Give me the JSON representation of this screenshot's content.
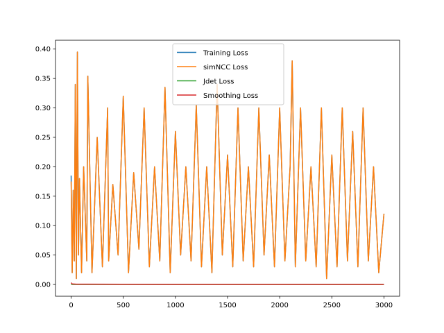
{
  "chart_data": {
    "type": "line",
    "title": "",
    "xlabel": "",
    "ylabel": "",
    "xlim": [
      -150,
      3150
    ],
    "ylim": [
      -0.02,
      0.415
    ],
    "x_ticks": [
      0,
      500,
      1000,
      1500,
      2000,
      2500,
      3000
    ],
    "x_tick_labels": [
      "0",
      "500",
      "1000",
      "1500",
      "2000",
      "2500",
      "3000"
    ],
    "y_ticks": [
      0.0,
      0.05,
      0.1,
      0.15,
      0.2,
      0.25,
      0.3,
      0.35,
      0.4
    ],
    "y_tick_labels": [
      "0.00",
      "0.05",
      "0.10",
      "0.15",
      "0.20",
      "0.25",
      "0.30",
      "0.35",
      "0.40"
    ],
    "grid": false,
    "legend_position": "upper-center",
    "series": [
      {
        "name": "Training Loss",
        "color": "#1f77b4",
        "x": [
          0,
          10,
          20,
          30,
          40,
          50,
          60,
          70,
          80,
          100,
          120,
          150,
          160,
          200,
          250,
          300,
          350,
          360,
          400,
          450,
          500,
          550,
          600,
          650,
          700,
          750,
          800,
          850,
          900,
          950,
          1000,
          1050,
          1100,
          1150,
          1200,
          1250,
          1300,
          1350,
          1400,
          1450,
          1500,
          1550,
          1600,
          1650,
          1700,
          1750,
          1800,
          1850,
          1900,
          1950,
          2000,
          2050,
          2100,
          2120,
          2150,
          2200,
          2250,
          2300,
          2350,
          2400,
          2450,
          2500,
          2550,
          2600,
          2650,
          2700,
          2750,
          2800,
          2850,
          2900,
          2950,
          3000
        ],
        "y": [
          0.185,
          0.02,
          0.16,
          0.04,
          0.34,
          0.01,
          0.395,
          0.05,
          0.18,
          0.02,
          0.2,
          0.04,
          0.354,
          0.02,
          0.25,
          0.03,
          0.3,
          0.04,
          0.17,
          0.05,
          0.32,
          0.02,
          0.19,
          0.06,
          0.3,
          0.03,
          0.2,
          0.04,
          0.335,
          0.02,
          0.26,
          0.05,
          0.2,
          0.04,
          0.305,
          0.03,
          0.2,
          0.02,
          0.34,
          0.05,
          0.22,
          0.03,
          0.3,
          0.04,
          0.2,
          0.03,
          0.3,
          0.05,
          0.22,
          0.03,
          0.3,
          0.04,
          0.2,
          0.38,
          0.03,
          0.3,
          0.04,
          0.2,
          0.03,
          0.3,
          0.01,
          0.22,
          0.03,
          0.3,
          0.04,
          0.26,
          0.03,
          0.3,
          0.04,
          0.2,
          0.02,
          0.12
        ]
      },
      {
        "name": "simNCC Loss",
        "color": "#ff7f0e",
        "x": [
          0,
          10,
          20,
          30,
          40,
          50,
          60,
          70,
          80,
          100,
          120,
          150,
          160,
          200,
          250,
          300,
          350,
          360,
          400,
          450,
          500,
          550,
          600,
          650,
          700,
          750,
          800,
          850,
          900,
          950,
          1000,
          1050,
          1100,
          1150,
          1200,
          1250,
          1300,
          1350,
          1400,
          1450,
          1500,
          1550,
          1600,
          1650,
          1700,
          1750,
          1800,
          1850,
          1900,
          1950,
          2000,
          2050,
          2100,
          2120,
          2150,
          2200,
          2250,
          2300,
          2350,
          2400,
          2450,
          2500,
          2550,
          2600,
          2650,
          2700,
          2750,
          2800,
          2850,
          2900,
          2950,
          3000
        ],
        "y": [
          0.175,
          0.02,
          0.16,
          0.04,
          0.34,
          0.01,
          0.395,
          0.05,
          0.18,
          0.02,
          0.2,
          0.04,
          0.354,
          0.02,
          0.25,
          0.03,
          0.3,
          0.04,
          0.17,
          0.05,
          0.32,
          0.02,
          0.19,
          0.06,
          0.3,
          0.03,
          0.2,
          0.04,
          0.335,
          0.02,
          0.26,
          0.05,
          0.2,
          0.04,
          0.305,
          0.03,
          0.2,
          0.02,
          0.34,
          0.05,
          0.22,
          0.03,
          0.3,
          0.04,
          0.2,
          0.03,
          0.3,
          0.05,
          0.22,
          0.03,
          0.3,
          0.04,
          0.2,
          0.38,
          0.03,
          0.3,
          0.04,
          0.2,
          0.03,
          0.3,
          0.01,
          0.22,
          0.03,
          0.3,
          0.04,
          0.26,
          0.03,
          0.3,
          0.04,
          0.2,
          0.02,
          0.12
        ]
      },
      {
        "name": "Jdet Loss",
        "color": "#2ca02c",
        "x": [
          0,
          3000
        ],
        "y": [
          0.0,
          0.0
        ]
      },
      {
        "name": "Smoothing Loss",
        "color": "#d62728",
        "x": [
          0,
          10,
          50,
          500,
          1000,
          1500,
          2000,
          2500,
          3000
        ],
        "y": [
          0.003,
          0.001,
          0.0005,
          0.0003,
          0.0002,
          0.0002,
          0.0002,
          0.0002,
          0.0002
        ]
      }
    ]
  }
}
